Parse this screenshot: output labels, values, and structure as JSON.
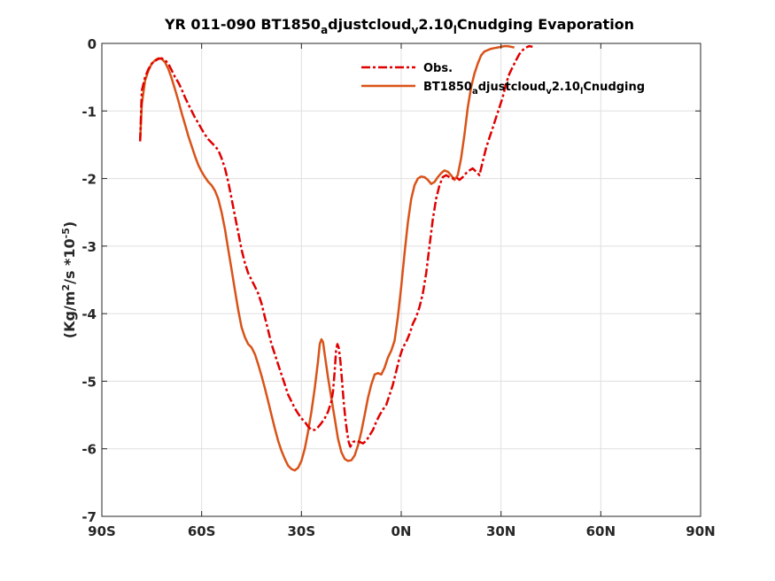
{
  "chart_data": {
    "type": "line",
    "title": {
      "base1": "YR 011-090 BT1850",
      "sub1": "a",
      "base2": "djustcloud",
      "sub2": "v",
      "base3": "2.10",
      "sub3": "l",
      "base4": "Cnudging Evaporation"
    },
    "ylabel": {
      "p1": "(Kg/m",
      "sup1": "2",
      "p2": "/s *10",
      "sup2": "-5",
      "p3": ")"
    },
    "xlim": [
      -90,
      90
    ],
    "ylim": [
      -7,
      0
    ],
    "grid": true,
    "legend_position": "top-right",
    "x_ticks": [
      {
        "value": -90,
        "label": "90S"
      },
      {
        "value": -60,
        "label": "60S"
      },
      {
        "value": -30,
        "label": "30S"
      },
      {
        "value": 0,
        "label": "0N"
      },
      {
        "value": 30,
        "label": "30N"
      },
      {
        "value": 60,
        "label": "60N"
      },
      {
        "value": 90,
        "label": "90N"
      }
    ],
    "y_ticks": [
      {
        "value": 0,
        "label": "0"
      },
      {
        "value": -1,
        "label": "-1"
      },
      {
        "value": -2,
        "label": "-2"
      },
      {
        "value": -3,
        "label": "-3"
      },
      {
        "value": -4,
        "label": "-4"
      },
      {
        "value": -5,
        "label": "-5"
      },
      {
        "value": -6,
        "label": "-6"
      },
      {
        "value": -7,
        "label": "-7"
      }
    ],
    "series": [
      {
        "name": "Obs.",
        "legend_parts": {
          "base": "Obs."
        },
        "color": "#e00000",
        "dash": "dashdot",
        "points": [
          [
            -78.5,
            -1.45
          ],
          [
            -78,
            -0.7
          ],
          [
            -77,
            -0.5
          ],
          [
            -76,
            -0.38
          ],
          [
            -75,
            -0.3
          ],
          [
            -74,
            -0.26
          ],
          [
            -73,
            -0.23
          ],
          [
            -72,
            -0.22
          ],
          [
            -71,
            -0.25
          ],
          [
            -70,
            -0.3
          ],
          [
            -69,
            -0.4
          ],
          [
            -68,
            -0.5
          ],
          [
            -67,
            -0.58
          ],
          [
            -66,
            -0.68
          ],
          [
            -65,
            -0.8
          ],
          [
            -64,
            -0.9
          ],
          [
            -63,
            -1.0
          ],
          [
            -62,
            -1.1
          ],
          [
            -61,
            -1.18
          ],
          [
            -60,
            -1.27
          ],
          [
            -59,
            -1.35
          ],
          [
            -58,
            -1.42
          ],
          [
            -57,
            -1.47
          ],
          [
            -56,
            -1.52
          ],
          [
            -55,
            -1.58
          ],
          [
            -54,
            -1.7
          ],
          [
            -53,
            -1.85
          ],
          [
            -52,
            -2.05
          ],
          [
            -51,
            -2.3
          ],
          [
            -50,
            -2.55
          ],
          [
            -49,
            -2.8
          ],
          [
            -48,
            -3.05
          ],
          [
            -47,
            -3.25
          ],
          [
            -46,
            -3.4
          ],
          [
            -45,
            -3.5
          ],
          [
            -44,
            -3.6
          ],
          [
            -43,
            -3.7
          ],
          [
            -42,
            -3.85
          ],
          [
            -41,
            -4.05
          ],
          [
            -40,
            -4.25
          ],
          [
            -39,
            -4.45
          ],
          [
            -38,
            -4.6
          ],
          [
            -37,
            -4.75
          ],
          [
            -36,
            -4.9
          ],
          [
            -35,
            -5.05
          ],
          [
            -34,
            -5.2
          ],
          [
            -33,
            -5.3
          ],
          [
            -32,
            -5.4
          ],
          [
            -31,
            -5.48
          ],
          [
            -30,
            -5.55
          ],
          [
            -29,
            -5.6
          ],
          [
            -28,
            -5.67
          ],
          [
            -27,
            -5.72
          ],
          [
            -26,
            -5.72
          ],
          [
            -25,
            -5.68
          ],
          [
            -24,
            -5.62
          ],
          [
            -23,
            -5.55
          ],
          [
            -22,
            -5.45
          ],
          [
            -21,
            -5.3
          ],
          [
            -20.5,
            -5.15
          ],
          [
            -20,
            -4.85
          ],
          [
            -19.6,
            -4.55
          ],
          [
            -19.2,
            -4.45
          ],
          [
            -18.8,
            -4.5
          ],
          [
            -18.3,
            -4.7
          ],
          [
            -17.8,
            -5.0
          ],
          [
            -17.3,
            -5.3
          ],
          [
            -16.8,
            -5.55
          ],
          [
            -16.3,
            -5.75
          ],
          [
            -15.8,
            -5.9
          ],
          [
            -15.3,
            -5.97
          ],
          [
            -14.5,
            -5.9
          ],
          [
            -13.5,
            -5.88
          ],
          [
            -12.5,
            -5.9
          ],
          [
            -11.5,
            -5.92
          ],
          [
            -10.5,
            -5.88
          ],
          [
            -9.5,
            -5.8
          ],
          [
            -8.5,
            -5.72
          ],
          [
            -7.5,
            -5.6
          ],
          [
            -6.5,
            -5.5
          ],
          [
            -5.5,
            -5.42
          ],
          [
            -4.5,
            -5.35
          ],
          [
            -3.5,
            -5.2
          ],
          [
            -2.5,
            -5.05
          ],
          [
            -1.5,
            -4.85
          ],
          [
            -0.5,
            -4.65
          ],
          [
            0.5,
            -4.5
          ],
          [
            1.5,
            -4.42
          ],
          [
            2.5,
            -4.3
          ],
          [
            3.5,
            -4.15
          ],
          [
            4.5,
            -4.05
          ],
          [
            5.5,
            -3.9
          ],
          [
            6.5,
            -3.7
          ],
          [
            7.5,
            -3.4
          ],
          [
            8.5,
            -3.0
          ],
          [
            9.5,
            -2.6
          ],
          [
            10.5,
            -2.3
          ],
          [
            11.5,
            -2.1
          ],
          [
            12.5,
            -1.98
          ],
          [
            13.5,
            -1.95
          ],
          [
            14.5,
            -1.98
          ],
          [
            15.5,
            -2.0
          ],
          [
            16.5,
            -1.98
          ],
          [
            17.5,
            -2.02
          ],
          [
            18.5,
            -1.98
          ],
          [
            19.5,
            -1.92
          ],
          [
            20.5,
            -1.88
          ],
          [
            21.5,
            -1.85
          ],
          [
            22.5,
            -1.9
          ],
          [
            23.5,
            -1.95
          ],
          [
            24.5,
            -1.75
          ],
          [
            25.5,
            -1.55
          ],
          [
            26.5,
            -1.4
          ],
          [
            27.5,
            -1.25
          ],
          [
            28.5,
            -1.1
          ],
          [
            29.5,
            -0.95
          ],
          [
            30.5,
            -0.8
          ],
          [
            31.5,
            -0.6
          ],
          [
            32.5,
            -0.45
          ],
          [
            33.5,
            -0.35
          ],
          [
            34.5,
            -0.25
          ],
          [
            35.5,
            -0.16
          ],
          [
            36.5,
            -0.1
          ],
          [
            37.5,
            -0.06
          ],
          [
            38.5,
            -0.04
          ],
          [
            39.5,
            -0.05
          ]
        ]
      },
      {
        "name": "BT1850adjustcloudv2.10lCnudging",
        "legend_parts": {
          "base1": "BT1850",
          "sub1": "a",
          "base2": "djustcloud",
          "sub2": "v",
          "base3": "2.10",
          "sub3": "l",
          "base4": "Cnudging"
        },
        "color": "#d95319",
        "dash": "solid",
        "points": [
          [
            -78.5,
            -1.45
          ],
          [
            -78,
            -0.9
          ],
          [
            -77,
            -0.55
          ],
          [
            -76,
            -0.4
          ],
          [
            -75,
            -0.3
          ],
          [
            -74,
            -0.25
          ],
          [
            -73,
            -0.22
          ],
          [
            -72,
            -0.23
          ],
          [
            -71,
            -0.28
          ],
          [
            -70,
            -0.38
          ],
          [
            -69,
            -0.52
          ],
          [
            -68,
            -0.68
          ],
          [
            -67,
            -0.85
          ],
          [
            -66,
            -1.03
          ],
          [
            -65,
            -1.2
          ],
          [
            -64,
            -1.37
          ],
          [
            -63,
            -1.52
          ],
          [
            -62,
            -1.67
          ],
          [
            -61,
            -1.8
          ],
          [
            -60,
            -1.9
          ],
          [
            -59,
            -1.98
          ],
          [
            -58,
            -2.05
          ],
          [
            -57,
            -2.1
          ],
          [
            -56,
            -2.18
          ],
          [
            -55,
            -2.3
          ],
          [
            -54,
            -2.5
          ],
          [
            -53,
            -2.75
          ],
          [
            -52,
            -3.05
          ],
          [
            -51,
            -3.35
          ],
          [
            -50,
            -3.65
          ],
          [
            -49,
            -3.95
          ],
          [
            -48,
            -4.2
          ],
          [
            -47,
            -4.35
          ],
          [
            -46,
            -4.45
          ],
          [
            -45,
            -4.5
          ],
          [
            -44,
            -4.6
          ],
          [
            -43,
            -4.75
          ],
          [
            -42,
            -4.92
          ],
          [
            -41,
            -5.1
          ],
          [
            -40,
            -5.3
          ],
          [
            -39,
            -5.5
          ],
          [
            -38,
            -5.7
          ],
          [
            -37,
            -5.88
          ],
          [
            -36,
            -6.03
          ],
          [
            -35,
            -6.15
          ],
          [
            -34,
            -6.25
          ],
          [
            -33,
            -6.3
          ],
          [
            -32,
            -6.32
          ],
          [
            -31,
            -6.28
          ],
          [
            -30,
            -6.18
          ],
          [
            -29,
            -6.0
          ],
          [
            -28,
            -5.75
          ],
          [
            -27,
            -5.45
          ],
          [
            -26,
            -5.1
          ],
          [
            -25,
            -4.7
          ],
          [
            -24.5,
            -4.45
          ],
          [
            -24,
            -4.38
          ],
          [
            -23.5,
            -4.42
          ],
          [
            -23,
            -4.6
          ],
          [
            -22,
            -4.95
          ],
          [
            -21,
            -5.25
          ],
          [
            -20,
            -5.55
          ],
          [
            -19,
            -5.85
          ],
          [
            -18,
            -6.05
          ],
          [
            -17,
            -6.15
          ],
          [
            -16,
            -6.18
          ],
          [
            -15,
            -6.17
          ],
          [
            -14,
            -6.1
          ],
          [
            -13,
            -5.95
          ],
          [
            -12,
            -5.75
          ],
          [
            -11,
            -5.5
          ],
          [
            -10,
            -5.25
          ],
          [
            -9,
            -5.05
          ],
          [
            -8,
            -4.9
          ],
          [
            -7,
            -4.88
          ],
          [
            -6,
            -4.9
          ],
          [
            -5,
            -4.8
          ],
          [
            -4,
            -4.65
          ],
          [
            -3,
            -4.55
          ],
          [
            -2,
            -4.4
          ],
          [
            -1,
            -4.05
          ],
          [
            0,
            -3.6
          ],
          [
            1,
            -3.1
          ],
          [
            2,
            -2.65
          ],
          [
            3,
            -2.3
          ],
          [
            4,
            -2.1
          ],
          [
            5,
            -2.0
          ],
          [
            6,
            -1.97
          ],
          [
            7,
            -1.98
          ],
          [
            8,
            -2.02
          ],
          [
            9,
            -2.08
          ],
          [
            10,
            -2.05
          ],
          [
            11,
            -1.98
          ],
          [
            12,
            -1.92
          ],
          [
            13,
            -1.88
          ],
          [
            14,
            -1.9
          ],
          [
            15,
            -1.95
          ],
          [
            16,
            -2.02
          ],
          [
            17,
            -1.95
          ],
          [
            18,
            -1.7
          ],
          [
            19,
            -1.35
          ],
          [
            20,
            -0.95
          ],
          [
            21,
            -0.65
          ],
          [
            22,
            -0.45
          ],
          [
            23,
            -0.3
          ],
          [
            24,
            -0.18
          ],
          [
            25,
            -0.12
          ],
          [
            26,
            -0.1
          ],
          [
            27,
            -0.08
          ],
          [
            28,
            -0.07
          ],
          [
            29,
            -0.06
          ],
          [
            30,
            -0.05
          ],
          [
            31,
            -0.04
          ],
          [
            32,
            -0.04
          ],
          [
            33,
            -0.05
          ],
          [
            34,
            -0.06
          ]
        ]
      }
    ]
  }
}
